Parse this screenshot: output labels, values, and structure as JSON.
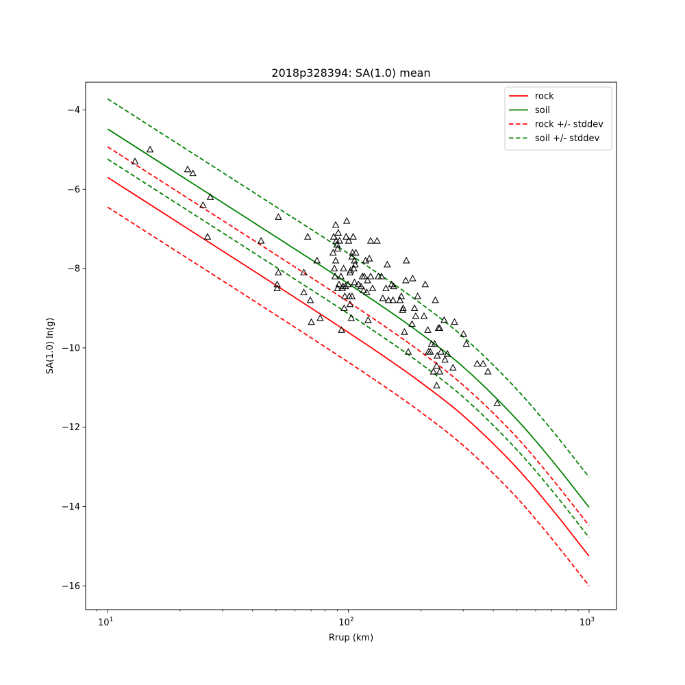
{
  "chart_data": {
    "type": "line",
    "title": "2018p328394: SA(1.0) mean",
    "xlabel": "Rrup (km)",
    "ylabel": "SA(1.0) ln(g)",
    "xscale": "log",
    "xlim": [
      8.1,
      1300
    ],
    "ylim": [
      -16.6,
      -3.3
    ],
    "xticks": [
      {
        "value": 10,
        "label": "10",
        "exp": "1"
      },
      {
        "value": 100,
        "label": "10",
        "exp": "2"
      },
      {
        "value": 1000,
        "label": "10",
        "exp": "3"
      }
    ],
    "yticks": [
      {
        "value": -4,
        "label": "−4"
      },
      {
        "value": -6,
        "label": "−6"
      },
      {
        "value": -8,
        "label": "−8"
      },
      {
        "value": -10,
        "label": "−10"
      },
      {
        "value": -12,
        "label": "−12"
      },
      {
        "value": -14,
        "label": "−14"
      },
      {
        "value": -16,
        "label": "−16"
      }
    ],
    "grid": false,
    "legend_position": "top-right",
    "x": [
      10,
      20,
      50,
      100,
      150,
      200,
      300,
      500,
      700,
      1000
    ],
    "series": [
      {
        "name": "rock",
        "key": "rock",
        "color": "#ff0000",
        "dash": "solid",
        "values": [
          -5.7,
          -6.87,
          -8.42,
          -9.61,
          -10.33,
          -10.87,
          -11.71,
          -13.02,
          -14.06,
          -15.25
        ]
      },
      {
        "name": "soil",
        "key": "soil",
        "color": "#008000",
        "dash": "solid",
        "values": [
          -4.48,
          -5.65,
          -7.2,
          -8.38,
          -9.1,
          -9.64,
          -10.48,
          -11.8,
          -12.83,
          -14.02
        ]
      },
      {
        "name": "rock +/- stddev",
        "key": "rock_upper",
        "color": "#ff0000",
        "dash": "dashed",
        "values": [
          -4.93,
          -6.1,
          -7.65,
          -8.84,
          -9.56,
          -10.1,
          -10.94,
          -12.25,
          -13.29,
          -14.48
        ]
      },
      {
        "name": "",
        "key": "rock_lower",
        "color": "#ff0000",
        "dash": "dashed",
        "values": [
          -6.45,
          -7.62,
          -9.17,
          -10.36,
          -11.08,
          -11.62,
          -12.46,
          -13.77,
          -14.81,
          -16.0
        ]
      },
      {
        "name": "soil +/- stddev",
        "key": "soil_upper",
        "color": "#008000",
        "dash": "dashed",
        "values": [
          -3.72,
          -4.89,
          -6.44,
          -7.62,
          -8.34,
          -8.88,
          -9.72,
          -11.04,
          -12.07,
          -13.26
        ]
      },
      {
        "name": "",
        "key": "soil_lower",
        "color": "#008000",
        "dash": "dashed",
        "values": [
          -5.24,
          -6.41,
          -7.96,
          -9.14,
          -9.86,
          -10.4,
          -11.24,
          -12.56,
          -13.59,
          -14.78
        ]
      }
    ],
    "observations": {
      "marker": "triangle",
      "color": "#000000",
      "points": [
        [
          13.0,
          -5.3
        ],
        [
          15.0,
          -5.0
        ],
        [
          21.5,
          -5.5
        ],
        [
          22.6,
          -5.6
        ],
        [
          24.9,
          -6.4
        ],
        [
          26.0,
          -7.2
        ],
        [
          26.7,
          -6.2
        ],
        [
          43.4,
          -7.3
        ],
        [
          50.6,
          -8.4
        ],
        [
          50.6,
          -8.5
        ],
        [
          51.2,
          -6.7
        ],
        [
          51.2,
          -8.1
        ],
        [
          65.3,
          -8.1
        ],
        [
          65.3,
          -8.6
        ],
        [
          67.8,
          -7.2
        ],
        [
          69.5,
          -8.8
        ],
        [
          70.2,
          -9.35
        ],
        [
          74.1,
          -7.8
        ],
        [
          76.4,
          -9.25
        ],
        [
          86.4,
          -7.6
        ],
        [
          86.9,
          -7.2
        ],
        [
          87.5,
          -8.0
        ],
        [
          88.0,
          -8.2
        ],
        [
          88.6,
          -6.9
        ],
        [
          88.6,
          -7.8
        ],
        [
          89.1,
          -7.3
        ],
        [
          89.7,
          -7.4
        ],
        [
          90.2,
          -8.5
        ],
        [
          90.2,
          -7.5
        ],
        [
          90.8,
          -7.1
        ],
        [
          91.4,
          -8.4
        ],
        [
          91.9,
          -7.3
        ],
        [
          93.1,
          -8.2
        ],
        [
          93.7,
          -9.55
        ],
        [
          94.3,
          -8.5
        ],
        [
          94.9,
          -8.45
        ],
        [
          95.5,
          -8.0
        ],
        [
          96.1,
          -9.0
        ],
        [
          96.7,
          -8.7
        ],
        [
          97.3,
          -8.45
        ],
        [
          97.9,
          -7.2
        ],
        [
          98.5,
          -6.8
        ],
        [
          99.7,
          -8.4
        ],
        [
          100.3,
          -7.3
        ],
        [
          100.9,
          -8.7
        ],
        [
          101.6,
          -8.9
        ],
        [
          101.6,
          -8.1
        ],
        [
          102.2,
          -8.05
        ],
        [
          102.8,
          -9.25
        ],
        [
          103.5,
          -7.7
        ],
        [
          103.5,
          -8.7
        ],
        [
          104.1,
          -7.6
        ],
        [
          104.7,
          -7.2
        ],
        [
          105.4,
          -8.0
        ],
        [
          106.0,
          -7.8
        ],
        [
          106.0,
          -8.35
        ],
        [
          106.7,
          -7.9
        ],
        [
          107.4,
          -7.6
        ],
        [
          110.1,
          -8.4
        ],
        [
          112.9,
          -8.45
        ],
        [
          114.3,
          -8.2
        ],
        [
          115.7,
          -8.55
        ],
        [
          116.4,
          -8.2
        ],
        [
          117.9,
          -7.8
        ],
        [
          119.3,
          -8.6
        ],
        [
          120.1,
          -8.3
        ],
        [
          120.8,
          -9.3
        ],
        [
          122.3,
          -7.75
        ],
        [
          123.8,
          -8.2
        ],
        [
          123.8,
          -7.3
        ],
        [
          126.1,
          -8.5
        ],
        [
          131.6,
          -7.3
        ],
        [
          133.2,
          -8.2
        ],
        [
          137.3,
          -8.2
        ],
        [
          139.0,
          -8.75
        ],
        [
          143.3,
          -8.5
        ],
        [
          145.1,
          -7.9
        ],
        [
          146.8,
          -8.8
        ],
        [
          151.4,
          -8.4
        ],
        [
          153.3,
          -8.8
        ],
        [
          154.2,
          -8.45
        ],
        [
          163.9,
          -8.8
        ],
        [
          165.9,
          -8.7
        ],
        [
          167.9,
          -9.05
        ],
        [
          168.9,
          -9.0
        ],
        [
          171.0,
          -9.6
        ],
        [
          173.1,
          -8.3
        ],
        [
          174.1,
          -7.8
        ],
        [
          177.3,
          -10.1
        ],
        [
          183.9,
          -9.4
        ],
        [
          184.9,
          -8.25
        ],
        [
          188.3,
          -9.0
        ],
        [
          190.5,
          -9.2
        ],
        [
          194.0,
          -8.7
        ],
        [
          206.2,
          -9.2
        ],
        [
          208.7,
          -8.4
        ],
        [
          213.8,
          -9.55
        ],
        [
          215.1,
          -10.1
        ],
        [
          219.0,
          -10.1
        ],
        [
          221.7,
          -9.9
        ],
        [
          225.7,
          -10.6
        ],
        [
          228.4,
          -9.9
        ],
        [
          229.8,
          -8.8
        ],
        [
          232.6,
          -10.45
        ],
        [
          232.6,
          -10.95
        ],
        [
          233.9,
          -10.2
        ],
        [
          236.8,
          -9.5
        ],
        [
          239.6,
          -10.6
        ],
        [
          239.6,
          -9.5
        ],
        [
          242.5,
          -10.1
        ],
        [
          250.0,
          -9.3
        ],
        [
          252.0,
          -10.3
        ],
        [
          258.0,
          -10.15
        ],
        [
          272.0,
          -10.5
        ],
        [
          276.0,
          -9.35
        ],
        [
          301.0,
          -9.65
        ],
        [
          309.0,
          -9.9
        ],
        [
          343.0,
          -10.4
        ],
        [
          363.0,
          -10.4
        ],
        [
          380.0,
          -10.6
        ],
        [
          415.0,
          -11.4
        ]
      ]
    }
  }
}
